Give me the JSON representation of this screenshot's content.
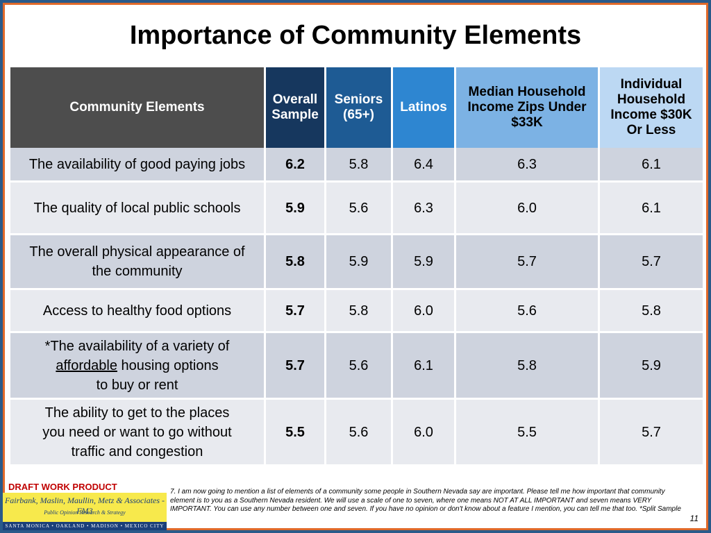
{
  "title": "Importance of Community Elements",
  "table": {
    "headers": [
      "Community Elements",
      "Overall Sample",
      "Seniors (65+)",
      "Latinos",
      "Median Household Income Zips Under $33K",
      "Individual Household Income $30K Or Less"
    ],
    "rows": [
      {
        "element_lines": [
          "The availability of good paying jobs"
        ],
        "values": [
          "6.2",
          "5.8",
          "6.4",
          "6.3",
          "6.1"
        ]
      },
      {
        "element_lines": [
          "The quality of local public schools"
        ],
        "values": [
          "5.9",
          "5.6",
          "6.3",
          "6.0",
          "6.1"
        ]
      },
      {
        "element_lines": [
          "The overall physical appearance of",
          "the community"
        ],
        "values": [
          "5.8",
          "5.9",
          "5.9",
          "5.7",
          "5.7"
        ]
      },
      {
        "element_lines": [
          "Access to healthy food options"
        ],
        "values": [
          "5.7",
          "5.8",
          "6.0",
          "5.6",
          "5.8"
        ]
      },
      {
        "element_lines": [
          "*The availability of a variety of",
          "affordable",
          " housing options",
          "to buy or rent"
        ],
        "values": [
          "5.7",
          "5.6",
          "6.1",
          "5.8",
          "5.9"
        ]
      },
      {
        "element_lines": [
          "The ability to get to the places",
          "you need or want to go without",
          "traffic and congestion"
        ],
        "values": [
          "5.5",
          "5.6",
          "6.0",
          "5.5",
          "5.7"
        ]
      }
    ]
  },
  "draft_label": "DRAFT WORK PRODUCT",
  "logo": {
    "name": "Fairbank, Maslin, Maullin, Metz & Associates - FM3",
    "subtitle": "Public Opinion Research & Strategy",
    "cities": "SANTA MONICA • OAKLAND • MADISON • MEXICO CITY"
  },
  "footnote": "7. I am now going to mention a list of elements of a community some people in Southern Nevada say are important.  Please tell me how important that community element is to you as a Southern Nevada resident.  We will use a scale of one to seven, where one means NOT AT ALL IMPORTANT and seven means VERY IMPORTANT.  You can use any number between one and seven.  If you have no opinion or don't know about a feature I mention, you can tell me that too.  *Split Sample",
  "page_number": "11",
  "colors": {
    "header_dark_gray": "#4d4d4d",
    "header_navy": "#16375e",
    "header_blue": "#1e5b94",
    "header_mid_blue": "#2e86d1",
    "header_light_blue": "#7cb2e4",
    "header_pale_blue": "#bcd8f3",
    "row_dark": "#ced3de",
    "row_light": "#e8eaef",
    "frame_blue": "#2a5a8a",
    "frame_orange": "#e06a2a",
    "draft_red": "#c00000"
  }
}
